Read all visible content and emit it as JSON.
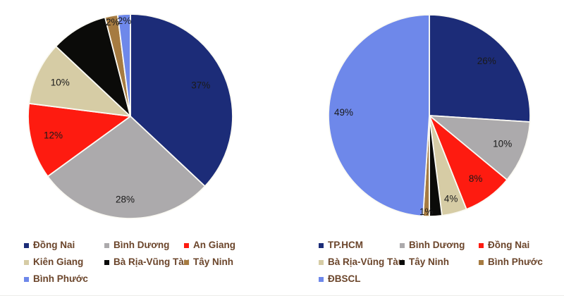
{
  "colors": {
    "background": "#FFFFFF",
    "legend_text": "#6B452B",
    "pie_label_text": "#1A1A1A",
    "slice_border": "#FBFAF4"
  },
  "chart_data": [
    {
      "type": "pie",
      "legend_position": "bottom",
      "start_angle_deg": 0,
      "direction": "clockwise",
      "slices": [
        {
          "label": "Đồng Nai",
          "value": 37,
          "pct_label": "37%",
          "color": "#1C2C78",
          "label_r": 0.75
        },
        {
          "label": "Bình Dương",
          "value": 28,
          "pct_label": "28%",
          "color": "#ACAAAC",
          "label_r": 0.82
        },
        {
          "label": "An Giang",
          "value": 12,
          "pct_label": "12%",
          "color": "#FE1B10",
          "label_r": 0.78
        },
        {
          "label": "Kiên Giang",
          "value": 10,
          "pct_label": "10%",
          "color": "#D6CCA5",
          "label_r": 0.76
        },
        {
          "label": "Bà Rịa-Vũng Tàu",
          "value": 9,
          "pct_label": "",
          "color": "#0B0B09",
          "label_r": 0.8
        },
        {
          "label": "Tây Ninh",
          "value": 2,
          "pct_label": "2%",
          "color": "#A67B41",
          "label_r": 0.93
        },
        {
          "label": "Bình Phước",
          "value": 2,
          "pct_label": "2%",
          "color": "#6E88EA",
          "label_r": 0.93
        }
      ]
    },
    {
      "type": "pie",
      "legend_position": "bottom",
      "start_angle_deg": 0,
      "direction": "clockwise",
      "slices": [
        {
          "label": "TP.HCM",
          "value": 26,
          "pct_label": "26%",
          "color": "#1C2C78",
          "label_r": 0.78
        },
        {
          "label": "Bình Dương",
          "value": 10,
          "pct_label": "10%",
          "color": "#ACAAAC",
          "label_r": 0.78
        },
        {
          "label": "Đồng Nai",
          "value": 8,
          "pct_label": "8%",
          "color": "#FE1B10",
          "label_r": 0.78
        },
        {
          "label": "Bà Rịa-Vũng Tàu",
          "value": 4,
          "pct_label": "4%",
          "color": "#D6CCA5",
          "label_r": 0.86
        },
        {
          "label": "Tây Ninh",
          "value": 2,
          "pct_label": "",
          "color": "#0B0B09",
          "label_r": 0.9
        },
        {
          "label": "Bình Phước",
          "value": 1,
          "pct_label": "1%",
          "color": "#A67B41",
          "label_r": 0.96
        },
        {
          "label": "ĐBSCL",
          "value": 49,
          "pct_label": "49%",
          "color": "#6E88EA",
          "label_r": 0.85
        }
      ]
    }
  ]
}
